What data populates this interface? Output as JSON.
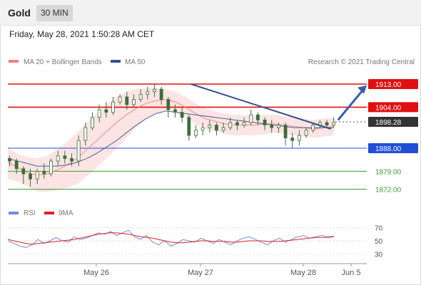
{
  "header": {
    "title": "Gold",
    "timeframe": "30 MIN"
  },
  "timestamp": "Friday, May 28, 2021 1:50:28 AM CET",
  "legend": {
    "ma20": "MA 20 + Bollinger Bands",
    "ma50": "MA 50",
    "copyright": "Research © 2021 Trading Central",
    "rsi": "RSI",
    "ma9": "9MA"
  },
  "colors": {
    "ma20": "#f08080",
    "band": "#fde3e3",
    "ma50": "#35508f",
    "resistance": "#e01010",
    "support_blue": "#1f4fd6",
    "support_green": "#3a9a3a",
    "trend": "#35508f",
    "candle": "#3a6e3a",
    "rsi": "#6f8fe0",
    "rsi_ma": "#e02020"
  },
  "chart_data": [
    {
      "type": "candlestick",
      "title": "Gold",
      "timeframe": "30 MIN",
      "x_labels": [
        "May 26",
        "May 27",
        "May 28",
        "Jun 5"
      ],
      "ylim": [
        1868,
        1918
      ],
      "levels": [
        {
          "value": 1913.0,
          "label": "1913.00",
          "kind": "resistance"
        },
        {
          "value": 1904.0,
          "label": "1904.00",
          "kind": "resistance"
        },
        {
          "value": 1898.28,
          "label": "1898.28",
          "kind": "current"
        },
        {
          "value": 1888.0,
          "label": "1888.00",
          "kind": "support"
        },
        {
          "value": 1879.0,
          "label": "1879.00",
          "kind": "support"
        },
        {
          "value": 1872.0,
          "label": "1872.00",
          "kind": "support"
        }
      ],
      "trendline": {
        "from": [
          0.51,
          1913.0
        ],
        "to": [
          0.9,
          1895.5
        ]
      },
      "forecast_arrow": {
        "from": [
          0.92,
          1899.0
        ],
        "to": [
          1.0,
          1912.5
        ]
      },
      "series": [
        {
          "name": "MA 20",
          "values": [
            1882.5,
            1880.5,
            1878.5,
            1877.5,
            1878.0,
            1879.5,
            1881.5,
            1884.0,
            1887.5,
            1891.0,
            1894.5,
            1898.0,
            1901.0,
            1903.5,
            1905.5,
            1906.5,
            1907.0,
            1906.0,
            1904.0,
            1901.5,
            1899.5,
            1898.5,
            1897.5,
            1897.0,
            1897.0,
            1897.0,
            1897.5,
            1897.5,
            1897.0,
            1896.5,
            1896.0,
            1895.5,
            1896.0,
            1896.5
          ]
        },
        {
          "name": "MA 50",
          "values": [
            1884.0,
            1883.0,
            1882.0,
            1881.0,
            1881.0,
            1881.0,
            1881.5,
            1882.5,
            1884.0,
            1886.0,
            1888.5,
            1891.0,
            1894.0,
            1897.0,
            1899.5,
            1901.5,
            1902.5,
            1902.0,
            1901.5,
            1901.0,
            1900.5,
            1900.0,
            1899.5,
            1899.0,
            1898.5,
            1898.0,
            1897.5,
            1897.0,
            1896.5,
            1896.0,
            1896.0,
            1896.0,
            1896.0,
            1896.0
          ]
        }
      ],
      "bollinger_upper": [
        1888.0,
        1886.0,
        1884.5,
        1884.0,
        1885.0,
        1887.5,
        1890.5,
        1894.0,
        1898.0,
        1901.5,
        1905.0,
        1908.0,
        1910.0,
        1911.0,
        1911.5,
        1911.5,
        1911.0,
        1910.0,
        1908.0,
        1905.5,
        1903.5,
        1902.5,
        1901.5,
        1901.0,
        1901.0,
        1901.0,
        1901.0,
        1901.0,
        1900.5,
        1900.0,
        1899.5,
        1899.0,
        1899.5,
        1900.0
      ],
      "bollinger_lower": [
        1876.0,
        1875.0,
        1873.0,
        1871.0,
        1871.0,
        1871.5,
        1872.5,
        1874.0,
        1877.0,
        1880.5,
        1884.0,
        1888.0,
        1892.0,
        1896.0,
        1899.5,
        1901.5,
        1903.0,
        1902.0,
        1900.0,
        1897.5,
        1895.5,
        1894.5,
        1893.5,
        1893.0,
        1893.0,
        1893.0,
        1893.5,
        1894.0,
        1893.5,
        1893.0,
        1892.5,
        1892.0,
        1892.5,
        1893.0
      ],
      "candles": [
        [
          1884,
          1883,
          1885,
          1881
        ],
        [
          1883,
          1880,
          1884,
          1878
        ],
        [
          1880,
          1878,
          1881,
          1874
        ],
        [
          1878,
          1876,
          1880,
          1873
        ],
        [
          1876,
          1879,
          1880,
          1874
        ],
        [
          1879,
          1878,
          1882,
          1876
        ],
        [
          1878,
          1883,
          1884,
          1877
        ],
        [
          1883,
          1885,
          1887,
          1881
        ],
        [
          1885,
          1884,
          1887,
          1882
        ],
        [
          1884,
          1883,
          1886,
          1881
        ],
        [
          1883,
          1891,
          1893,
          1881
        ],
        [
          1891,
          1896,
          1898,
          1889
        ],
        [
          1896,
          1900,
          1902,
          1895
        ],
        [
          1900,
          1903,
          1905,
          1898
        ],
        [
          1903,
          1902,
          1906,
          1900
        ],
        [
          1902,
          1906,
          1908,
          1901
        ],
        [
          1906,
          1908,
          1909,
          1905
        ],
        [
          1908,
          1905,
          1910,
          1903
        ],
        [
          1905,
          1907,
          1909,
          1904
        ],
        [
          1907,
          1909,
          1911,
          1906
        ],
        [
          1909,
          1910,
          1912,
          1907
        ],
        [
          1910,
          1911,
          1913,
          1908
        ],
        [
          1911,
          1907,
          1912,
          1905
        ],
        [
          1907,
          1903,
          1908,
          1900
        ],
        [
          1903,
          1902,
          1905,
          1900
        ],
        [
          1902,
          1900,
          1904,
          1898
        ],
        [
          1900,
          1893,
          1901,
          1891
        ],
        [
          1893,
          1895,
          1897,
          1892
        ],
        [
          1895,
          1896,
          1898,
          1893
        ],
        [
          1896,
          1897,
          1899,
          1894
        ],
        [
          1897,
          1895,
          1898,
          1893
        ],
        [
          1895,
          1896,
          1898,
          1894
        ],
        [
          1896,
          1898,
          1900,
          1895
        ],
        [
          1898,
          1897,
          1899,
          1895
        ],
        [
          1897,
          1898,
          1900,
          1896
        ],
        [
          1898,
          1901,
          1903,
          1897
        ],
        [
          1901,
          1899,
          1902,
          1897
        ],
        [
          1899,
          1897,
          1900,
          1895
        ],
        [
          1897,
          1896,
          1899,
          1894
        ],
        [
          1896,
          1897,
          1898,
          1894
        ],
        [
          1897,
          1892,
          1898,
          1889
        ],
        [
          1892,
          1891,
          1894,
          1888
        ],
        [
          1891,
          1893,
          1895,
          1889
        ],
        [
          1893,
          1895,
          1896,
          1892
        ],
        [
          1895,
          1897,
          1898,
          1894
        ],
        [
          1897,
          1898,
          1899,
          1896
        ],
        [
          1898,
          1897,
          1899,
          1896
        ],
        [
          1897,
          1898,
          1900,
          1896
        ]
      ]
    },
    {
      "type": "line",
      "title": "RSI",
      "ylim": [
        20,
        80
      ],
      "y_ticks": [
        70,
        50,
        30
      ],
      "series": [
        {
          "name": "RSI",
          "values": [
            50,
            46,
            42,
            40,
            44,
            52,
            46,
            50,
            55,
            50,
            48,
            56,
            52,
            54,
            58,
            62,
            60,
            64,
            58,
            62,
            66,
            56,
            52,
            58,
            48,
            44,
            50,
            42,
            46,
            52,
            50,
            48,
            54,
            50,
            46,
            52,
            48,
            44,
            50,
            54,
            56,
            52,
            48,
            44,
            50,
            54,
            48,
            52,
            56,
            58,
            54,
            56,
            58,
            56,
            57
          ]
        },
        {
          "name": "9MA",
          "values": [
            52,
            50,
            48,
            46,
            45,
            46,
            47,
            48,
            49,
            50,
            51,
            52,
            54,
            56,
            58,
            60,
            61,
            62,
            62,
            61,
            60,
            58,
            56,
            55,
            54,
            52,
            50,
            48,
            47,
            47,
            48,
            49,
            50,
            50,
            49,
            49,
            49,
            48,
            48,
            49,
            50,
            50,
            50,
            49,
            49,
            49,
            50,
            51,
            52,
            53,
            54,
            55,
            55,
            55,
            56
          ]
        }
      ]
    }
  ]
}
